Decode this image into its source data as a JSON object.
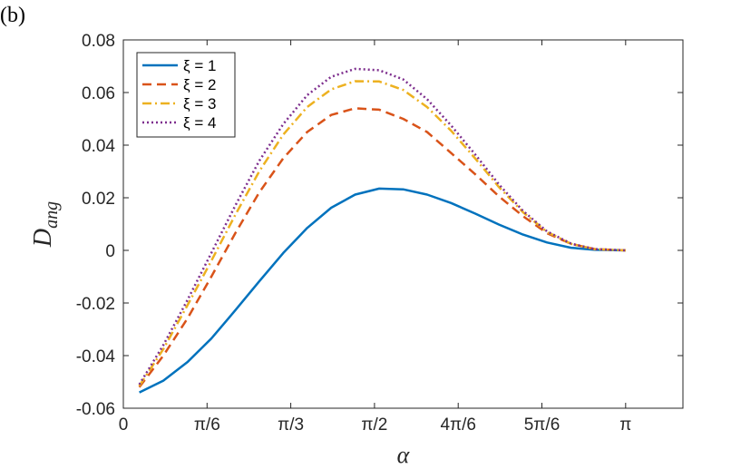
{
  "panel_label": "(b)",
  "chart_data": {
    "type": "line",
    "xlabel": "α",
    "ylabel_main": "D",
    "ylabel_sub": "ang",
    "xlim": [
      0,
      3.5
    ],
    "ylim": [
      -0.06,
      0.08
    ],
    "xticks": [
      0,
      0.5235988,
      1.0471976,
      1.5707963,
      2.0943951,
      2.6179939,
      3.1415927
    ],
    "xtick_labels": [
      "0",
      "π/6",
      "π/3",
      "π/2",
      "4π/6",
      "5π/6",
      "π"
    ],
    "yticks": [
      -0.06,
      -0.04,
      -0.02,
      0,
      0.02,
      0.04,
      0.06,
      0.08
    ],
    "ytick_labels": [
      "-0.06",
      "-0.04",
      "-0.02",
      "0",
      "0.02",
      "0.04",
      "0.06",
      "0.08"
    ],
    "legend_position": "top-left",
    "x": [
      0.1,
      0.25,
      0.4,
      0.55,
      0.7,
      0.85,
      1.0,
      1.15,
      1.3,
      1.45,
      1.6,
      1.75,
      1.9,
      2.05,
      2.2,
      2.35,
      2.5,
      2.65,
      2.8,
      2.95,
      3.1416
    ],
    "series": [
      {
        "name": "ξ = 1",
        "color": "#0072BD",
        "dash": "solid",
        "values": [
          -0.054,
          -0.0495,
          -0.0425,
          -0.0335,
          -0.0228,
          -0.0118,
          -0.001,
          0.0085,
          0.0162,
          0.0212,
          0.0235,
          0.0232,
          0.0212,
          0.018,
          0.014,
          0.0098,
          0.006,
          0.003,
          0.001,
          0.0002,
          0.0
        ]
      },
      {
        "name": "ξ = 2",
        "color": "#D95319",
        "dash": "dashed",
        "values": [
          -0.052,
          -0.04,
          -0.026,
          -0.01,
          0.0065,
          0.022,
          0.035,
          0.045,
          0.0515,
          0.054,
          0.0535,
          0.05,
          0.045,
          0.037,
          0.029,
          0.0205,
          0.013,
          0.0065,
          0.0025,
          0.0005,
          0.0
        ]
      },
      {
        "name": "ξ = 3",
        "color": "#EDB120",
        "dash": "dashdot",
        "values": [
          -0.0515,
          -0.0375,
          -0.021,
          -0.004,
          0.0135,
          0.03,
          0.044,
          0.0545,
          0.0612,
          0.0643,
          0.0642,
          0.061,
          0.0545,
          0.0455,
          0.035,
          0.024,
          0.0145,
          0.007,
          0.0025,
          0.0005,
          0.0
        ]
      },
      {
        "name": "ξ = 4",
        "color": "#7E2F8E",
        "dash": "dotted",
        "values": [
          -0.051,
          -0.036,
          -0.019,
          -0.001,
          0.017,
          0.034,
          0.048,
          0.059,
          0.066,
          0.069,
          0.0685,
          0.065,
          0.0575,
          0.0475,
          0.0365,
          0.025,
          0.015,
          0.0072,
          0.0026,
          0.0005,
          0.0
        ]
      }
    ]
  }
}
